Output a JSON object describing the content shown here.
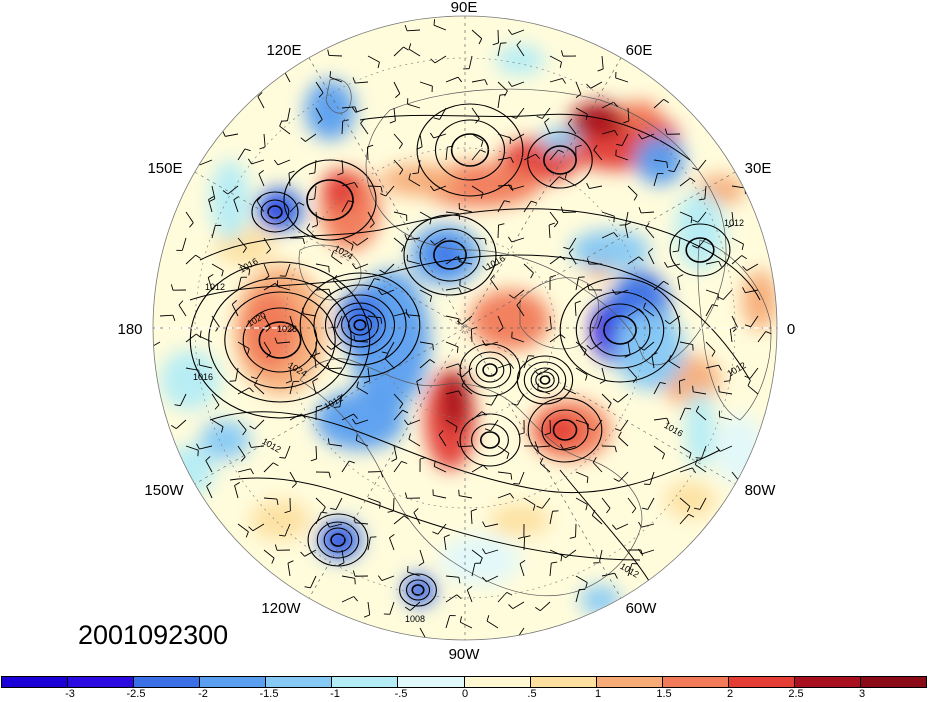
{
  "map": {
    "projection": "north-polar-stereographic",
    "longitude_labels": [
      "90E",
      "60E",
      "30E",
      "0",
      "80W",
      "60W",
      "90W",
      "120W",
      "150W",
      "180",
      "150E",
      "120E"
    ],
    "contour_labels": [
      "1016",
      "1012",
      "1024",
      "1020",
      "1028",
      "1024",
      "1012",
      "1016",
      "1012",
      "1016",
      "1012",
      "1016",
      "1012",
      "1008",
      "1012"
    ],
    "date_label": "2001092300",
    "colors": {
      "ocean_neutral": "#fffcdc",
      "land_line": "#555555",
      "contour": "#000000"
    }
  },
  "colorbar": {
    "colors": [
      "#2a0ae0",
      "#3a6fe6",
      "#5a9ef0",
      "#86c9f5",
      "#b4ecf6",
      "#e1f8fb",
      "#fdf7d2",
      "#fddfa0",
      "#f7ac78",
      "#f17a58",
      "#e33d36",
      "#a8101f"
    ],
    "ticks": [
      "-3",
      "-2.5",
      "-2",
      "-1.5",
      "-1",
      "-.5",
      "0",
      ".5",
      "1",
      "1.5",
      "2",
      "2.5",
      "3"
    ]
  }
}
